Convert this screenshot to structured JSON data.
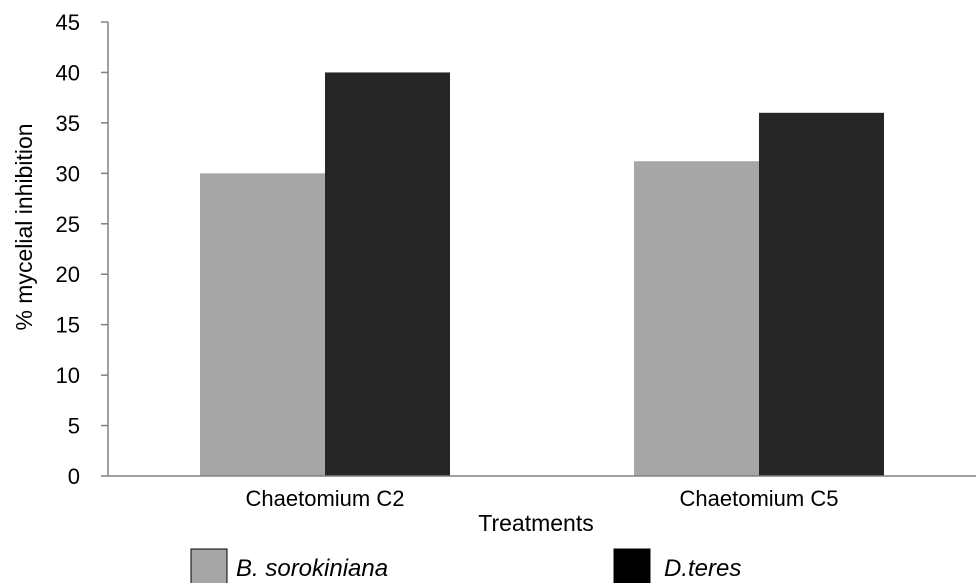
{
  "chart_data": {
    "type": "bar",
    "title": "",
    "xlabel": "Treatments",
    "ylabel": "% mycelial inhibition",
    "ylim": [
      0,
      45
    ],
    "yticks": [
      "0",
      "5",
      "10",
      "15",
      "20",
      "25",
      "30",
      "35",
      "40",
      "45"
    ],
    "categories": [
      "Chaetomium C2",
      "Chaetomium C5"
    ],
    "series": [
      {
        "name": "B. sorokiniana",
        "values": [
          30,
          31.2
        ],
        "color": "#a6a6a6"
      },
      {
        "name": "D.teres",
        "values": [
          40,
          36
        ],
        "color": "#262626"
      }
    ],
    "grid": false,
    "legend": "bottom"
  }
}
